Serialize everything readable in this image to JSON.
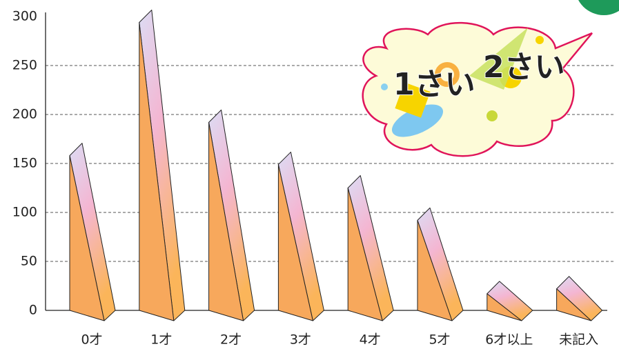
{
  "chart_data": {
    "type": "bar",
    "categories": [
      "0才",
      "1才",
      "2才",
      "3才",
      "4才",
      "5才",
      "6才以上",
      "未記入"
    ],
    "values": [
      158,
      294,
      192,
      149,
      125,
      92,
      17,
      22
    ],
    "color": "#f7a85c",
    "ylim": [
      0,
      300
    ],
    "yticks": [
      0,
      50,
      100,
      150,
      200,
      250,
      300
    ],
    "grid": true,
    "annotations": [
      "1さい",
      "2さい"
    ]
  }
}
